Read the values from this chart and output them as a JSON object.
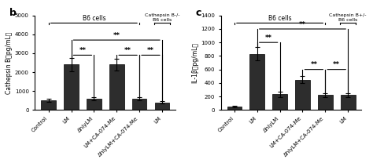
{
  "panel_b": {
    "title": "b",
    "ylabel": "Cathepsin B（pg/mL）",
    "ylim": [
      0,
      5000
    ],
    "yticks": [
      0,
      1000,
      2000,
      3000,
      4000,
      5000
    ],
    "categories": [
      "Control",
      "LM",
      "ΔhlyLM",
      "LM+CA-074-Me",
      "ΔhlyLM+CA-074-Me",
      "LM"
    ],
    "values": [
      500,
      2400,
      600,
      2400,
      600,
      400
    ],
    "errors": [
      80,
      350,
      80,
      300,
      80,
      60
    ],
    "bar_color": "#2d2d2d",
    "group_label_b6": "B6 cells",
    "group_label_cathepsin": "Cathepsin B-/-\nB6 cells",
    "significance_pairs": [
      [
        1,
        2,
        "**",
        2900
      ],
      [
        3,
        4,
        "**",
        2900
      ],
      [
        4,
        5,
        "**",
        2900
      ],
      [
        1,
        5,
        "**",
        3700
      ]
    ]
  },
  "panel_c": {
    "title": "c",
    "ylabel": "IL-1β（pg/mL）",
    "ylim": [
      0,
      1400
    ],
    "yticks": [
      0,
      200,
      400,
      600,
      800,
      1000,
      1200,
      1400
    ],
    "categories": [
      "Control",
      "LM",
      "ΔhlyLM",
      "LM+CA-074-Me",
      "ΔhlyLM+CA-074-Me",
      "LM"
    ],
    "values": [
      50,
      830,
      230,
      450,
      220,
      220
    ],
    "errors": [
      15,
      100,
      35,
      50,
      25,
      30
    ],
    "bar_color": "#2d2d2d",
    "group_label_b6": "B6 cells",
    "group_label_cathepsin": "Cathepsin B+/-\nB6 cells",
    "significance_pairs": [
      [
        1,
        2,
        "**",
        1000
      ],
      [
        3,
        4,
        "**",
        600
      ],
      [
        4,
        5,
        "**",
        600
      ],
      [
        1,
        5,
        "**",
        1200
      ]
    ]
  },
  "bg_color": "#ffffff",
  "figure_width": 4.74,
  "figure_height": 2.08
}
